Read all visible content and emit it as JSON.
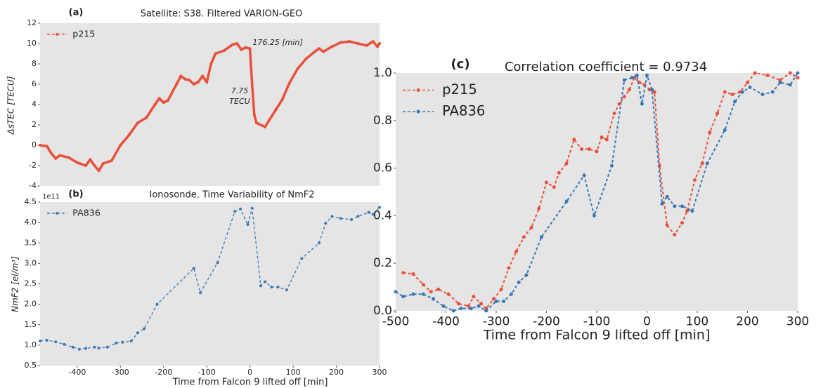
{
  "chart_data": [
    {
      "type": "line",
      "panel_label": "(a)",
      "title": "Satellite: S38. Filtered VARION-GEO",
      "ylabel": "ΔsTEC [TECU]",
      "xlim": [
        -486,
        300
      ],
      "ylim": [
        -4,
        12
      ],
      "yticks": [
        -4,
        -2,
        0,
        2,
        4,
        6,
        8,
        10,
        12
      ],
      "grid": false,
      "legend": "upper left",
      "annotations": [
        "176.25 [min]",
        "7.75",
        "TECU"
      ],
      "series": [
        {
          "name": "p215",
          "color": "#e8503a",
          "linestyle": "solid",
          "x": [
            -486,
            -470,
            -460,
            -450,
            -440,
            -420,
            -400,
            -380,
            -370,
            -360,
            -350,
            -340,
            -320,
            -300,
            -280,
            -260,
            -240,
            -220,
            -210,
            -200,
            -190,
            -180,
            -170,
            -160,
            -150,
            -140,
            -130,
            -120,
            -110,
            -100,
            -90,
            -80,
            -60,
            -40,
            -30,
            -20,
            -10,
            0,
            5,
            10,
            15,
            25,
            35,
            45,
            60,
            75,
            90,
            110,
            130,
            150,
            160,
            170,
            190,
            210,
            230,
            250,
            270,
            285,
            295,
            300
          ],
          "values": [
            0,
            -0.1,
            -0.8,
            -1.3,
            -1.0,
            -1.2,
            -1.7,
            -2.0,
            -1.4,
            -2.0,
            -2.5,
            -1.8,
            -1.5,
            0,
            1.0,
            2.2,
            2.7,
            4.0,
            4.6,
            4.2,
            4.4,
            5.2,
            6.0,
            6.8,
            6.5,
            6.4,
            6.0,
            6.2,
            6.8,
            6.2,
            8.0,
            9.0,
            9.3,
            9.9,
            10.0,
            9.4,
            9.6,
            9.5,
            6.0,
            3.0,
            2.2,
            2.0,
            1.8,
            2.5,
            3.5,
            4.5,
            6.0,
            7.5,
            8.5,
            9.2,
            9.5,
            9.2,
            9.7,
            10.1,
            10.2,
            10.0,
            9.8,
            10.2,
            9.7,
            10.0
          ]
        }
      ]
    },
    {
      "type": "line",
      "panel_label": "(b)",
      "title": "Ionosonde. Time Variability of NmF2",
      "ylabel": "NmF2 [el/m³]",
      "y_offset_label": "1e11",
      "xlabel": "Time from Falcon 9 lifted off [min]",
      "xlim": [
        -486,
        300
      ],
      "xticks": [
        -400,
        -300,
        -200,
        -100,
        0,
        100,
        200,
        300
      ],
      "ylim": [
        0.5,
        4.5
      ],
      "yticks": [
        0.5,
        {
          "value": 1.0,
          "label": "1.0"
        },
        1.5,
        {
          "value": 2.0,
          "label": "2.0"
        },
        2.5,
        {
          "value": 3.0,
          "label": "3.0"
        },
        3.5,
        {
          "value": 4.0,
          "label": "4.0"
        },
        4.5
      ],
      "grid": false,
      "legend": "upper left",
      "series": [
        {
          "name": "PA836",
          "color": "#3a78b5",
          "linestyle": "dashed",
          "x": [
            -486,
            -470,
            -450,
            -430,
            -410,
            -395,
            -380,
            -360,
            -350,
            -330,
            -310,
            -295,
            -275,
            -260,
            -245,
            -215,
            -130,
            -115,
            -75,
            -35,
            -22,
            -5,
            5,
            25,
            35,
            50,
            65,
            85,
            120,
            160,
            175,
            190,
            210,
            235,
            250,
            275,
            285,
            300
          ],
          "values": [
            1.1,
            1.12,
            1.08,
            1.02,
            0.95,
            0.9,
            0.92,
            0.95,
            0.93,
            0.95,
            1.05,
            1.07,
            1.1,
            1.3,
            1.4,
            2.0,
            2.88,
            2.28,
            3.02,
            4.27,
            4.33,
            3.95,
            4.35,
            2.45,
            2.55,
            2.42,
            2.42,
            2.35,
            3.12,
            3.5,
            3.98,
            4.15,
            4.1,
            4.07,
            4.15,
            4.25,
            4.2,
            4.37
          ]
        }
      ]
    },
    {
      "type": "line",
      "panel_label": "(c)",
      "title": "Correlation coefficient = 0.9734",
      "xlabel": "Time from Falcon 9 lifted off [min]",
      "xlim": [
        -500,
        300
      ],
      "xticks": [
        -500,
        -400,
        -300,
        -200,
        -100,
        0,
        100,
        200,
        300
      ],
      "ylim": [
        0,
        1.0
      ],
      "yticks": [
        {
          "value": 0,
          "label": "0.0"
        },
        0.2,
        0.4,
        0.6,
        0.8,
        {
          "value": 1.0,
          "label": "1.0"
        }
      ],
      "grid": false,
      "legend": "upper left",
      "series": [
        {
          "name": "p215",
          "color": "#e8503a",
          "linestyle": "dashed",
          "x": [
            -485,
            -465,
            -445,
            -430,
            -415,
            -395,
            -375,
            -355,
            -345,
            -330,
            -320,
            -305,
            -290,
            -275,
            -260,
            -245,
            -230,
            -215,
            -200,
            -185,
            -175,
            -160,
            -145,
            -130,
            -115,
            -100,
            -90,
            -80,
            -65,
            -55,
            -45,
            -35,
            -25,
            -15,
            -5,
            5,
            15,
            25,
            40,
            55,
            70,
            80,
            95,
            110,
            125,
            140,
            155,
            170,
            185,
            200,
            215,
            240,
            265,
            285,
            300
          ],
          "values": [
            0.16,
            0.155,
            0.11,
            0.08,
            0.09,
            0.07,
            0.03,
            0.02,
            0.06,
            0.03,
            0.01,
            0.05,
            0.09,
            0.18,
            0.25,
            0.31,
            0.35,
            0.43,
            0.54,
            0.52,
            0.58,
            0.62,
            0.72,
            0.68,
            0.68,
            0.67,
            0.73,
            0.72,
            0.83,
            0.87,
            0.9,
            0.93,
            0.98,
            0.96,
            0.95,
            0.93,
            0.92,
            0.61,
            0.36,
            0.32,
            0.37,
            0.42,
            0.55,
            0.62,
            0.75,
            0.83,
            0.92,
            0.91,
            0.92,
            0.96,
            1.0,
            0.99,
            0.97,
            1.0,
            0.98
          ]
        },
        {
          "name": "PA836",
          "color": "#3a78b5",
          "linestyle": "dashed",
          "x": [
            -500,
            -485,
            -465,
            -445,
            -425,
            -405,
            -385,
            -370,
            -350,
            -335,
            -320,
            -300,
            -285,
            -270,
            -255,
            -240,
            -210,
            -160,
            -125,
            -105,
            -70,
            -45,
            -30,
            -20,
            -10,
            0,
            10,
            30,
            40,
            55,
            70,
            90,
            120,
            155,
            175,
            190,
            205,
            230,
            250,
            265,
            285,
            300
          ],
          "values": [
            0.08,
            0.06,
            0.07,
            0.07,
            0.05,
            0.02,
            0.0,
            0.01,
            0.01,
            0.02,
            0.0,
            0.04,
            0.04,
            0.07,
            0.12,
            0.15,
            0.31,
            0.46,
            0.57,
            0.4,
            0.61,
            0.97,
            0.98,
            0.99,
            0.87,
            0.99,
            0.93,
            0.45,
            0.48,
            0.44,
            0.44,
            0.42,
            0.62,
            0.76,
            0.88,
            0.92,
            0.94,
            0.91,
            0.92,
            0.96,
            0.95,
            1.0
          ]
        }
      ]
    }
  ]
}
